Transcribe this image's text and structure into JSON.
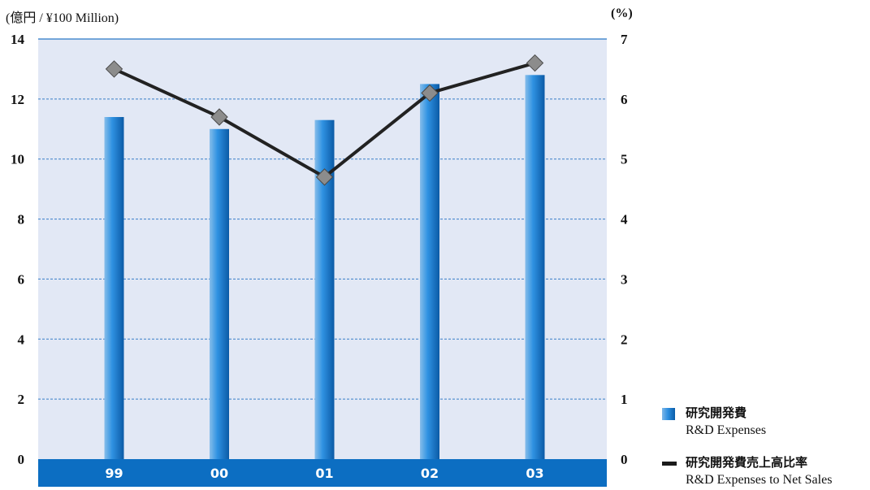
{
  "units": {
    "left": "(億円 / ¥100 Million)",
    "right": "(%)"
  },
  "legend": {
    "bars": {
      "jp": "研究開発費",
      "en": "R&D Expenses"
    },
    "line": {
      "jp": "研究開発費売上高比率",
      "en": "R&D Expenses to Net Sales"
    }
  },
  "colors": {
    "plot_bg": "#e2e8f5",
    "bar": "#1f7fd6",
    "axis_bar": "#0c6ec2",
    "line": "#222222",
    "marker": "#8c8c8c",
    "grid": "#3a7ec8"
  },
  "chart_data": {
    "type": "bar",
    "categories": [
      "99",
      "00",
      "01",
      "02",
      "03"
    ],
    "series": [
      {
        "name": "R&D Expenses",
        "type": "bar",
        "axis": "left",
        "values": [
          11.4,
          11.0,
          11.3,
          12.5,
          12.8
        ]
      },
      {
        "name": "R&D Expenses to Net Sales",
        "type": "line",
        "axis": "right",
        "values": [
          6.5,
          5.7,
          4.7,
          6.1,
          6.6
        ]
      }
    ],
    "yleft": {
      "ticks": [
        "0",
        "2",
        "4",
        "6",
        "8",
        "10",
        "12",
        "14"
      ],
      "ylim": [
        0,
        14
      ]
    },
    "yright": {
      "ticks": [
        "0",
        "1",
        "2",
        "3",
        "4",
        "5",
        "6",
        "7"
      ],
      "ylim": [
        0,
        7
      ]
    },
    "grid": true,
    "legend_position": "bottom-right"
  }
}
